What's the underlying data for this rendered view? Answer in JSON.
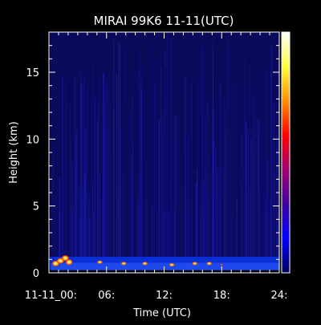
{
  "chart_data": {
    "type": "heatmap",
    "title": "MIRAI 99K6 11-11(UTC)",
    "xlabel": "Time (UTC)",
    "ylabel": "Height (km)",
    "xlim": [
      0,
      24
    ],
    "ylim": [
      0,
      18
    ],
    "x_ticks": [
      {
        "value": 0,
        "label": "11-11_00:"
      },
      {
        "value": 6,
        "label": "06:"
      },
      {
        "value": 12,
        "label": "12:"
      },
      {
        "value": 18,
        "label": "18:"
      },
      {
        "value": 24,
        "label": "24:"
      }
    ],
    "y_ticks": [
      {
        "value": 0,
        "label": "0"
      },
      {
        "value": 5,
        "label": "5"
      },
      {
        "value": 10,
        "label": "10"
      },
      {
        "value": 15,
        "label": "15"
      }
    ],
    "colorbar_colors": [
      "#ffffff",
      "#ffff40",
      "#ff9000",
      "#ff0000",
      "#a00070",
      "#4000a0",
      "#0000ff",
      "#000060"
    ],
    "grid": false,
    "background_color": "#000000",
    "signal_layers": [
      {
        "name": "boundary-layer",
        "x_start": 0.1,
        "x_end": 24,
        "y_bottom": 0.2,
        "y_top": 1.2,
        "color": "#0a2fd8"
      },
      {
        "name": "upper-noise",
        "x_start": 0.1,
        "x_end": 24,
        "y_bottom": 1.2,
        "y_top": 18,
        "color": "#0a0a5a"
      }
    ],
    "hotspots": [
      {
        "x": 0.7,
        "y": 0.7,
        "intensity": "high"
      },
      {
        "x": 1.2,
        "y": 0.9,
        "intensity": "high"
      },
      {
        "x": 1.7,
        "y": 1.1,
        "intensity": "high"
      },
      {
        "x": 2.1,
        "y": 0.8,
        "intensity": "high"
      },
      {
        "x": 5.3,
        "y": 0.8,
        "intensity": "medium"
      },
      {
        "x": 7.8,
        "y": 0.7,
        "intensity": "medium"
      },
      {
        "x": 10.0,
        "y": 0.7,
        "intensity": "medium"
      },
      {
        "x": 12.8,
        "y": 0.6,
        "intensity": "medium"
      },
      {
        "x": 15.2,
        "y": 0.7,
        "intensity": "medium"
      },
      {
        "x": 16.7,
        "y": 0.7,
        "intensity": "medium"
      },
      {
        "x": 18.0,
        "y": 0.6,
        "intensity": "low"
      }
    ]
  }
}
